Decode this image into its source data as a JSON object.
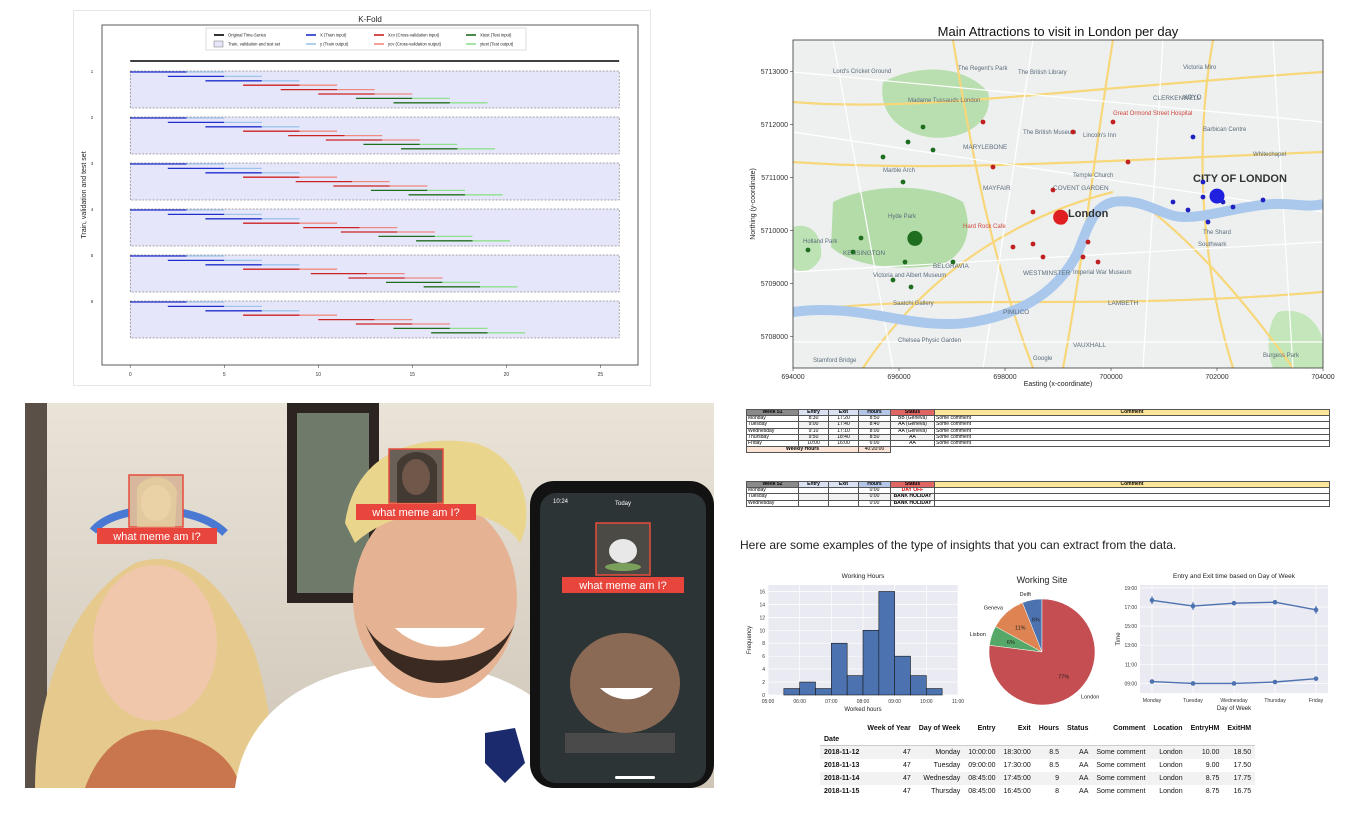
{
  "kfold": {
    "title": "K-Fold",
    "ylabel": "Train, validation and test set",
    "legend": [
      "Original Time-Series",
      "Train, validation and test set",
      "X (Train input)",
      "y (Train output)",
      "Xcv (Cross-validation input)",
      "ycv (Cross-validation output)",
      "Xtest (Test input)",
      "ytest (Test output)"
    ],
    "legend_colors": [
      "#000000",
      "#e6e6fa",
      "#1f2fcc",
      "#9ec4ec",
      "#cc2222",
      "#ef8a80",
      "#1f6e1f",
      "#8fe08f"
    ],
    "fold_labels": [
      "1",
      "2",
      "3",
      "4",
      "5",
      "6"
    ],
    "xticks": [
      "0",
      "5",
      "10",
      "15",
      "20",
      "25"
    ]
  },
  "chart_data": [
    {
      "type": "line",
      "title": "K-Fold",
      "xlabel": "",
      "ylabel": "Train, validation and test set",
      "xlim": [
        -1.5,
        27
      ],
      "xticks": [
        0,
        5,
        10,
        15,
        20,
        25
      ],
      "series_time": [
        0,
        26
      ],
      "folds": 6,
      "window": {
        "train_x": 3,
        "train_y": 2,
        "cv_x": 3,
        "cv_y": 2,
        "test_x": 3,
        "test_y": 2,
        "steps": 8,
        "stride": 2
      }
    },
    {
      "type": "scatter",
      "title": "Main Attractions to visit in London per day",
      "xlabel": "Easting (x-coordinate)",
      "ylabel": "Northing (y-coordinate)",
      "xlim": [
        694000,
        704000
      ],
      "ylim": [
        5707400,
        5713600
      ],
      "xticks": [
        694000,
        696000,
        698000,
        700000,
        702000,
        704000
      ],
      "yticks": [
        5708000,
        5709000,
        5710000,
        5711000,
        5712000,
        5713000
      ],
      "big_points": [
        {
          "x": 696300,
          "y": 5709850,
          "color": "#1f6e1f"
        },
        {
          "x": 699050,
          "y": 5710250,
          "color": "#e02020"
        },
        {
          "x": 702000,
          "y": 5710650,
          "color": "#2020e0"
        }
      ],
      "map_labels": [
        "Lord's Cricket Ground",
        "The Regent's Park",
        "Madame Tussauds London",
        "The British Library",
        "Victoria Miro",
        "CLERKENWELL",
        "XOYO",
        "Great Ormond Street Hospital",
        "Barbican Centre",
        "The British Museum",
        "Lincoln's Inn",
        "MARYLEBONE",
        "Temple Church",
        "CITY OF LONDON",
        "Marble Arch",
        "MAYFAIR",
        "COVENT GARDEN",
        "London",
        "Hyde Park",
        "Hard Rock Cafe",
        "Holland Park",
        "KENSINGTON",
        "Victoria and Albert Museum",
        "BELGRAVIA",
        "WESTMINSTER",
        "Imperial War Museum",
        "The Shard",
        "Southwark",
        "LAMBETH",
        "Saatchi Gallery",
        "PIMLICO",
        "Chelsea Physic Garden",
        "VAUXHALL",
        "Stamford Bridge",
        "Google",
        "Burgess Park",
        "Whitechapel"
      ]
    },
    {
      "type": "bar",
      "title": "Working Hours",
      "xlabel": "Worked hours",
      "ylabel": "Frequency",
      "x_bins": [
        5.5,
        6.0,
        6.5,
        7.0,
        7.5,
        8.0,
        8.5,
        9.0,
        9.5,
        10.0
      ],
      "values": [
        1,
        2,
        1,
        8,
        3,
        10,
        16,
        6,
        3,
        1
      ],
      "ylim": [
        0,
        17
      ],
      "xticks": [
        "05:00",
        "06:00",
        "07:00",
        "08:00",
        "09:00",
        "10:00",
        "11:00"
      ],
      "yticks": [
        0,
        2,
        4,
        6,
        8,
        10,
        12,
        14,
        16
      ]
    },
    {
      "type": "pie",
      "title": "Working Site",
      "labels": [
        "London",
        "Geneva",
        "Lisbon",
        "Delft"
      ],
      "values": [
        77,
        11,
        6,
        6
      ],
      "pct_labels": [
        "77%",
        "11%",
        "6%",
        "6%"
      ],
      "colors": [
        "#c44e52",
        "#dd8452",
        "#55a868",
        "#4c72b0"
      ]
    },
    {
      "type": "line",
      "title": "Entry and Exit time based on Day of Week",
      "xlabel": "Day of Week",
      "ylabel": "Time",
      "categories": [
        "Monday",
        "Tuesday",
        "Wednesday",
        "Thursday",
        "Friday"
      ],
      "series": [
        {
          "values": [
            17.7,
            17.1,
            17.4,
            17.5,
            16.7
          ],
          "err": [
            0.4,
            0.4,
            0.2,
            0.2,
            0.4
          ]
        },
        {
          "values": [
            9.2,
            9.0,
            9.0,
            9.15,
            9.5
          ],
          "err": [
            0.15,
            0.05,
            0.05,
            0.1,
            0.1
          ]
        }
      ],
      "ylim": [
        8,
        19.3
      ],
      "yticks": [
        "09:00",
        "11:00",
        "13:00",
        "15:00",
        "17:00",
        "19:00"
      ],
      "ytick_values": [
        9,
        11,
        13,
        15,
        17,
        19
      ]
    }
  ],
  "london": {
    "title": "Main Attractions to visit in London per day",
    "xlabel": "Easting (x-coordinate)",
    "ylabel": "Northing (y-coordinate)",
    "xticks": [
      "694000",
      "696000",
      "698000",
      "700000",
      "702000",
      "704000"
    ],
    "yticks": [
      "5708000",
      "5709000",
      "5710000",
      "5711000",
      "5712000",
      "5713000"
    ]
  },
  "photo": {
    "caption": "what meme am I?",
    "phone_time": "10:24",
    "phone_day": "Today"
  },
  "report": {
    "week51": {
      "header": [
        "Week 51",
        "Entry",
        "Exit",
        "Hours",
        "Status",
        "Comment"
      ],
      "rows": [
        [
          "Monday",
          "8:30",
          "17:20",
          "8:50",
          "BB (Geneva)",
          "Some comment"
        ],
        [
          "Tuesday",
          "9:00",
          "17:40",
          "8:40",
          "AA (Geneva)",
          "Some comment"
        ],
        [
          "Wednesday",
          "9:10",
          "17:10",
          "8:00",
          "AA (Geneva)",
          "Some comment"
        ],
        [
          "Thursday",
          "9:50",
          "18:40",
          "8:50",
          "AA",
          "Some comment"
        ],
        [
          "Friday",
          "10:00",
          "16:00",
          "6:00",
          "AA",
          "Some comment"
        ]
      ],
      "total_label": "Weekly Hours",
      "total_value": "40:20:00"
    },
    "week52": {
      "header": [
        "Week 52",
        "Entry",
        "Exit",
        "Hours",
        "Status",
        "Comment"
      ],
      "rows": [
        [
          "Monday",
          "",
          "",
          "0:00",
          "DAY OFF",
          ""
        ],
        [
          "Tuesday",
          "",
          "",
          "0:00",
          "BANK HOLIDAY",
          ""
        ],
        [
          "Wednesday",
          "",
          "",
          "0:00",
          "BANK HOLIDAY",
          ""
        ]
      ]
    },
    "insight": "Here are some examples of the type of insights that you can extract from the data.",
    "df": {
      "columns": [
        "Week of Year",
        "Day of Week",
        "Entry",
        "Exit",
        "Hours",
        "Status",
        "Comment",
        "Location",
        "EntryHM",
        "ExitHM"
      ],
      "index_name": "Date",
      "rows": [
        [
          "2018-11-12",
          "47",
          "Monday",
          "10:00:00",
          "18:30:00",
          "8.5",
          "AA",
          "Some comment",
          "London",
          "10.00",
          "18.50"
        ],
        [
          "2018-11-13",
          "47",
          "Tuesday",
          "09:00:00",
          "17:30:00",
          "8.5",
          "AA",
          "Some comment",
          "London",
          "9.00",
          "17.50"
        ],
        [
          "2018-11-14",
          "47",
          "Wednesday",
          "08:45:00",
          "17:45:00",
          "9",
          "AA",
          "Some comment",
          "London",
          "8.75",
          "17.75"
        ],
        [
          "2018-11-15",
          "47",
          "Thursday",
          "08:45:00",
          "16:45:00",
          "8",
          "AA",
          "Some comment",
          "London",
          "8.75",
          "16.75"
        ]
      ]
    }
  }
}
